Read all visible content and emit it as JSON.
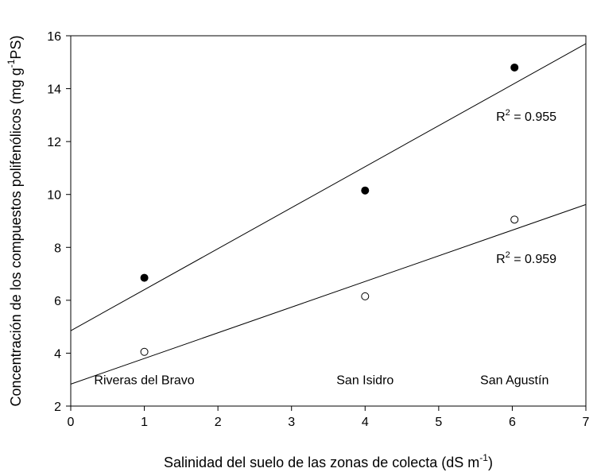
{
  "chart_data": {
    "type": "scatter",
    "xlabel": "Salinidad del suelo de las zonas de colecta (dS m",
    "xlabel_sup": "-1",
    "xlabel_end": ")",
    "ylabel": "Concentración de los compuestos polifenólicos (mg g",
    "ylabel_sup": "-1",
    "ylabel_end": "PS)",
    "xlim": [
      0,
      7
    ],
    "ylim": [
      2,
      16
    ],
    "xticks": [
      0,
      1,
      2,
      3,
      4,
      5,
      6,
      7
    ],
    "yticks": [
      2,
      4,
      6,
      8,
      10,
      12,
      14,
      16
    ],
    "grid": false,
    "series": [
      {
        "marker": "filled-circle",
        "color": "#000000",
        "x": [
          1,
          4,
          6.03
        ],
        "y": [
          6.85,
          10.15,
          14.8
        ],
        "fit": {
          "intercept": 4.85,
          "slope": 1.55
        },
        "r2_label": "R",
        "r2_sup": "2",
        "r2_value": " = 0.955"
      },
      {
        "marker": "open-circle",
        "color": "#000000",
        "x": [
          1,
          4,
          6.03
        ],
        "y": [
          4.05,
          6.15,
          9.05
        ],
        "fit": {
          "intercept": 2.83,
          "slope": 0.97
        },
        "r2_label": "R",
        "r2_sup": "2",
        "r2_value": " = 0.959"
      }
    ],
    "annotations": [
      {
        "text": "Riveras del Bravo",
        "x": 1,
        "y": 3.0
      },
      {
        "text": "San Isidro",
        "x": 4,
        "y": 3.0
      },
      {
        "text": "San Agustín",
        "x": 6.03,
        "y": 3.0
      }
    ]
  }
}
